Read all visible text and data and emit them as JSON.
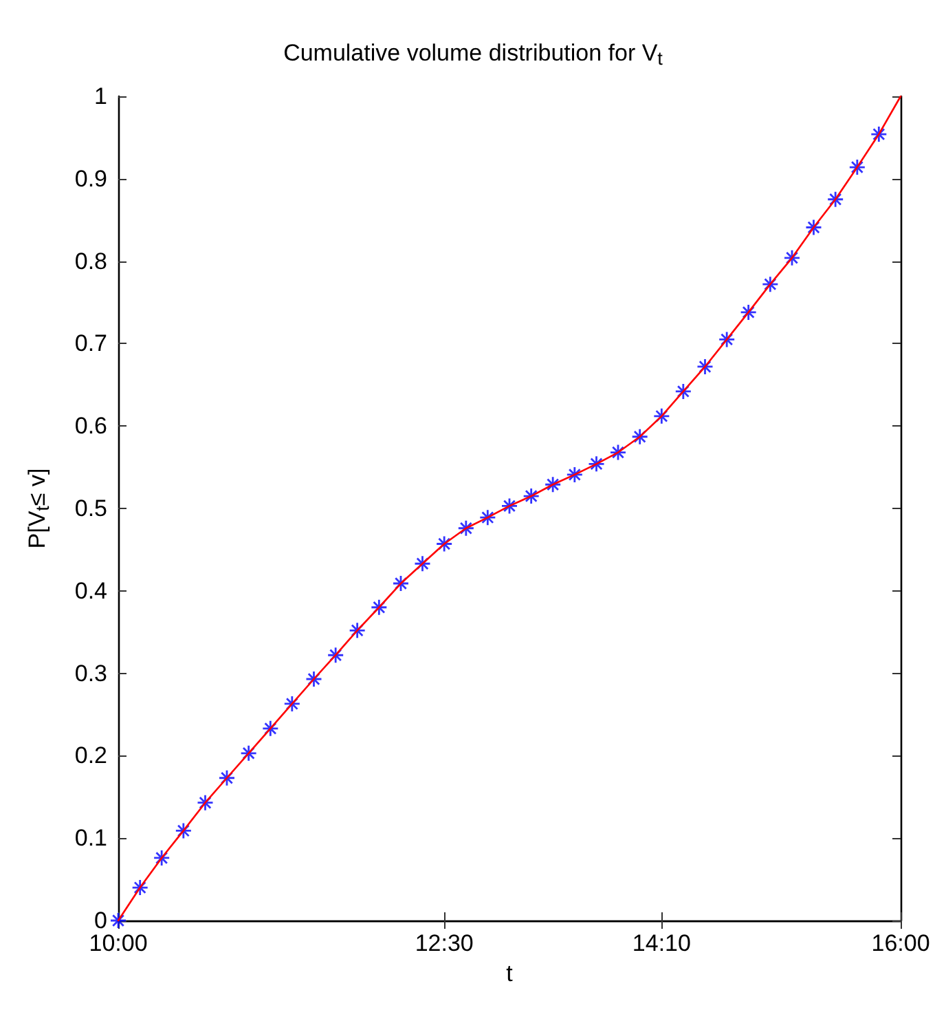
{
  "chart_data": {
    "type": "line",
    "title": "Cumulative volume distribution for V$_{t}$",
    "xlabel": "t",
    "ylabel": "P[V$_{t}$≤ v]",
    "xlim": [
      10,
      16
    ],
    "xticks": [
      {
        "value": 10,
        "label": "10:00"
      },
      {
        "value": 12.5,
        "label": "12:30"
      },
      {
        "value": 14.167,
        "label": "14:10"
      },
      {
        "value": 16,
        "label": "16:00"
      }
    ],
    "ylim": [
      0,
      1
    ],
    "yticks": [
      0,
      0.1,
      0.2,
      0.3,
      0.4,
      0.5,
      0.6,
      0.7,
      0.8,
      0.9,
      1
    ],
    "grid": false,
    "series": [
      {
        "color": "#ff0000",
        "marker": "none",
        "x": [
          10,
          10.167,
          10.333,
          10.5,
          10.667,
          10.833,
          11,
          11.167,
          11.333,
          11.5,
          11.667,
          11.833,
          12,
          12.167,
          12.333,
          12.5,
          12.667,
          12.833,
          13,
          13.167,
          13.333,
          13.5,
          13.667,
          13.833,
          14,
          14.167,
          14.333,
          14.5,
          14.667,
          14.833,
          15,
          15.167,
          15.333,
          15.5,
          15.667,
          15.833,
          16
        ],
        "values": [
          0,
          0.04,
          0.076,
          0.109,
          0.143,
          0.173,
          0.203,
          0.233,
          0.263,
          0.293,
          0.322,
          0.352,
          0.38,
          0.409,
          0.433,
          0.457,
          0.476,
          0.489,
          0.503,
          0.515,
          0.529,
          0.541,
          0.554,
          0.568,
          0.587,
          0.612,
          0.642,
          0.672,
          0.705,
          0.738,
          0.772,
          0.804,
          0.841,
          0.875,
          0.914,
          0.954,
          1
        ]
      },
      {
        "type": "scatter",
        "color": "#0000ff",
        "marker": "cross",
        "x": [
          10,
          10.167,
          10.333,
          10.5,
          10.667,
          10.833,
          11,
          11.167,
          11.333,
          11.5,
          11.667,
          11.833,
          12,
          12.167,
          12.333,
          12.5,
          12.667,
          12.833,
          13,
          13.167,
          13.333,
          13.5,
          13.667,
          13.833,
          14,
          14.167,
          14.333,
          14.5,
          14.667,
          14.833,
          15,
          15.167,
          15.333,
          15.5,
          15.667,
          15.833
        ],
        "values": [
          0,
          0.04,
          0.076,
          0.109,
          0.143,
          0.173,
          0.203,
          0.233,
          0.263,
          0.293,
          0.322,
          0.352,
          0.38,
          0.409,
          0.433,
          0.457,
          0.476,
          0.489,
          0.503,
          0.515,
          0.529,
          0.541,
          0.554,
          0.568,
          0.587,
          0.612,
          0.642,
          0.672,
          0.705,
          0.738,
          0.772,
          0.804,
          0.841,
          0.875,
          0.914,
          0.954
        ]
      }
    ]
  }
}
